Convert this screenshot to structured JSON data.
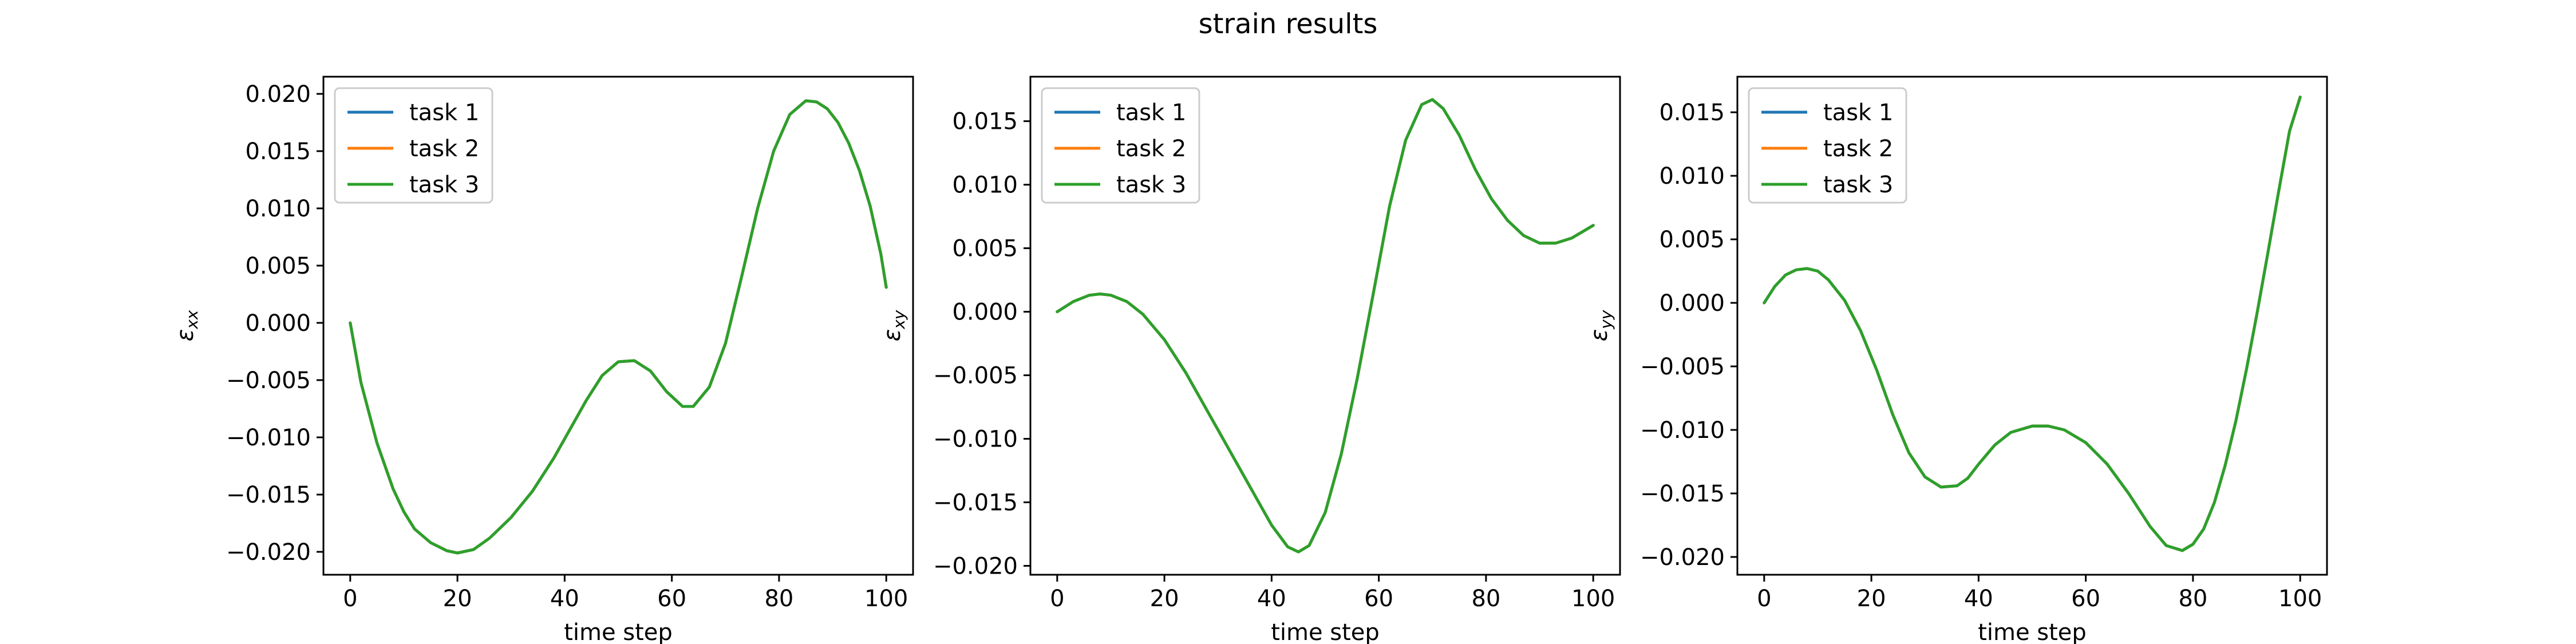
{
  "figure": {
    "title": "strain results"
  },
  "colors": {
    "task_1": "#1f77b4",
    "task_2": "#ff7f0e",
    "task_3": "#2ca02c"
  },
  "chart_data": [
    {
      "type": "line",
      "title": "",
      "xlabel": "time step",
      "ylabel": "εxx",
      "ylabel_symbol": "ε",
      "ylabel_subscript": "xx",
      "xlim": [
        -5,
        105
      ],
      "ylim": [
        -0.022,
        0.0215
      ],
      "xticks": [
        0,
        20,
        40,
        60,
        80,
        100
      ],
      "xtick_labels": [
        "0",
        "20",
        "40",
        "60",
        "80",
        "100"
      ],
      "yticks": [
        -0.02,
        -0.015,
        -0.01,
        -0.005,
        0.0,
        0.005,
        0.01,
        0.015,
        0.02
      ],
      "ytick_labels": [
        "−0.020",
        "−0.015",
        "−0.010",
        "−0.005",
        "0.000",
        "0.005",
        "0.010",
        "0.015",
        "0.020"
      ],
      "grid": false,
      "legend_position": "top-left",
      "x": [
        0,
        2,
        5,
        8,
        10,
        12,
        15,
        18,
        20,
        23,
        26,
        30,
        34,
        38,
        41,
        44,
        47,
        50,
        53,
        56,
        59,
        62,
        64,
        67,
        70,
        73,
        76,
        79,
        82,
        85,
        87,
        89,
        91,
        93,
        95,
        97,
        99,
        100
      ],
      "series": [
        {
          "name": "task 1",
          "color": "#1f77b4",
          "values": [
            0.0,
            -0.0052,
            -0.0105,
            -0.0145,
            -0.0165,
            -0.018,
            -0.0192,
            -0.0199,
            -0.0201,
            -0.0198,
            -0.0188,
            -0.017,
            -0.0147,
            -0.0118,
            -0.0093,
            -0.0068,
            -0.0046,
            -0.0034,
            -0.0033,
            -0.0042,
            -0.006,
            -0.0073,
            -0.0073,
            -0.0056,
            -0.0018,
            0.004,
            0.01,
            0.015,
            0.0182,
            0.0194,
            0.0193,
            0.0187,
            0.0175,
            0.0157,
            0.0133,
            0.0102,
            0.006,
            0.0031
          ]
        },
        {
          "name": "task 2",
          "color": "#ff7f0e",
          "values": [
            0.0,
            -0.0052,
            -0.0105,
            -0.0145,
            -0.0165,
            -0.018,
            -0.0192,
            -0.0199,
            -0.0201,
            -0.0198,
            -0.0188,
            -0.017,
            -0.0147,
            -0.0118,
            -0.0093,
            -0.0068,
            -0.0046,
            -0.0034,
            -0.0033,
            -0.0042,
            -0.006,
            -0.0073,
            -0.0073,
            -0.0056,
            -0.0018,
            0.004,
            0.01,
            0.015,
            0.0182,
            0.0194,
            0.0193,
            0.0187,
            0.0175,
            0.0157,
            0.0133,
            0.0102,
            0.006,
            0.0031
          ]
        },
        {
          "name": "task 3",
          "color": "#2ca02c",
          "values": [
            0.0,
            -0.0052,
            -0.0105,
            -0.0145,
            -0.0165,
            -0.018,
            -0.0192,
            -0.0199,
            -0.0201,
            -0.0198,
            -0.0188,
            -0.017,
            -0.0147,
            -0.0118,
            -0.0093,
            -0.0068,
            -0.0046,
            -0.0034,
            -0.0033,
            -0.0042,
            -0.006,
            -0.0073,
            -0.0073,
            -0.0056,
            -0.0018,
            0.004,
            0.01,
            0.015,
            0.0182,
            0.0194,
            0.0193,
            0.0187,
            0.0175,
            0.0157,
            0.0133,
            0.0102,
            0.006,
            0.0031
          ]
        }
      ]
    },
    {
      "type": "line",
      "title": "",
      "xlabel": "time step",
      "ylabel": "εxy",
      "ylabel_symbol": "ε",
      "ylabel_subscript": "xy",
      "xlim": [
        -5,
        105
      ],
      "ylim": [
        -0.0207,
        0.0185
      ],
      "xticks": [
        0,
        20,
        40,
        60,
        80,
        100
      ],
      "xtick_labels": [
        "0",
        "20",
        "40",
        "60",
        "80",
        "100"
      ],
      "yticks": [
        -0.02,
        -0.015,
        -0.01,
        -0.005,
        0.0,
        0.005,
        0.01,
        0.015
      ],
      "ytick_labels": [
        "−0.020",
        "−0.015",
        "−0.010",
        "−0.005",
        "0.000",
        "0.005",
        "0.010",
        "0.015"
      ],
      "grid": false,
      "legend_position": "top-left",
      "x": [
        0,
        3,
        6,
        8,
        10,
        13,
        16,
        20,
        24,
        28,
        32,
        36,
        40,
        43,
        45,
        47,
        50,
        53,
        56,
        59,
        62,
        65,
        68,
        70,
        72,
        75,
        78,
        81,
        84,
        87,
        90,
        93,
        96,
        98,
        100
      ],
      "series": [
        {
          "name": "task 1",
          "color": "#1f77b4",
          "values": [
            0.0,
            0.0008,
            0.0013,
            0.0014,
            0.0013,
            0.0008,
            -0.0002,
            -0.0022,
            -0.0048,
            -0.0078,
            -0.0108,
            -0.0138,
            -0.0168,
            -0.0185,
            -0.0189,
            -0.0184,
            -0.0158,
            -0.0112,
            -0.0052,
            0.0015,
            0.0083,
            0.0135,
            0.0163,
            0.0167,
            0.016,
            0.0139,
            0.0112,
            0.0089,
            0.0072,
            0.006,
            0.0054,
            0.0054,
            0.0058,
            0.0063,
            0.0068
          ]
        },
        {
          "name": "task 2",
          "color": "#ff7f0e",
          "values": [
            0.0,
            0.0008,
            0.0013,
            0.0014,
            0.0013,
            0.0008,
            -0.0002,
            -0.0022,
            -0.0048,
            -0.0078,
            -0.0108,
            -0.0138,
            -0.0168,
            -0.0185,
            -0.0189,
            -0.0184,
            -0.0158,
            -0.0112,
            -0.0052,
            0.0015,
            0.0083,
            0.0135,
            0.0163,
            0.0167,
            0.016,
            0.0139,
            0.0112,
            0.0089,
            0.0072,
            0.006,
            0.0054,
            0.0054,
            0.0058,
            0.0063,
            0.0068
          ]
        },
        {
          "name": "task 3",
          "color": "#2ca02c",
          "values": [
            0.0,
            0.0008,
            0.0013,
            0.0014,
            0.0013,
            0.0008,
            -0.0002,
            -0.0022,
            -0.0048,
            -0.0078,
            -0.0108,
            -0.0138,
            -0.0168,
            -0.0185,
            -0.0189,
            -0.0184,
            -0.0158,
            -0.0112,
            -0.0052,
            0.0015,
            0.0083,
            0.0135,
            0.0163,
            0.0167,
            0.016,
            0.0139,
            0.0112,
            0.0089,
            0.0072,
            0.006,
            0.0054,
            0.0054,
            0.0058,
            0.0063,
            0.0068
          ]
        }
      ]
    },
    {
      "type": "line",
      "title": "",
      "xlabel": "time step",
      "ylabel": "εyy",
      "ylabel_symbol": "ε",
      "ylabel_subscript": "yy",
      "xlim": [
        -5,
        105
      ],
      "ylim": [
        -0.0214,
        0.0178
      ],
      "xticks": [
        0,
        20,
        40,
        60,
        80,
        100
      ],
      "xtick_labels": [
        "0",
        "20",
        "40",
        "60",
        "80",
        "100"
      ],
      "yticks": [
        -0.02,
        -0.015,
        -0.01,
        -0.005,
        0.0,
        0.005,
        0.01,
        0.015
      ],
      "ytick_labels": [
        "−0.020",
        "−0.015",
        "−0.010",
        "−0.005",
        "0.000",
        "0.005",
        "0.010",
        "0.015"
      ],
      "grid": false,
      "legend_position": "top-left",
      "x": [
        0,
        2,
        4,
        6,
        8,
        10,
        12,
        15,
        18,
        21,
        24,
        27,
        30,
        33,
        36,
        38,
        40,
        43,
        46,
        50,
        53,
        56,
        60,
        64,
        68,
        72,
        75,
        78,
        80,
        82,
        84,
        86,
        88,
        90,
        92,
        94,
        96,
        98,
        100
      ],
      "series": [
        {
          "name": "task 1",
          "color": "#1f77b4",
          "values": [
            0.0,
            0.0013,
            0.0022,
            0.0026,
            0.0027,
            0.0025,
            0.0018,
            0.0002,
            -0.0022,
            -0.0053,
            -0.0088,
            -0.0118,
            -0.0137,
            -0.0145,
            -0.0144,
            -0.0138,
            -0.0127,
            -0.0112,
            -0.0102,
            -0.0097,
            -0.0097,
            -0.01,
            -0.011,
            -0.0127,
            -0.015,
            -0.0176,
            -0.0191,
            -0.0195,
            -0.019,
            -0.0178,
            -0.0157,
            -0.0128,
            -0.0093,
            -0.0052,
            -0.0007,
            0.004,
            0.0088,
            0.0135,
            0.0162
          ]
        },
        {
          "name": "task 2",
          "color": "#ff7f0e",
          "values": [
            0.0,
            0.0013,
            0.0022,
            0.0026,
            0.0027,
            0.0025,
            0.0018,
            0.0002,
            -0.0022,
            -0.0053,
            -0.0088,
            -0.0118,
            -0.0137,
            -0.0145,
            -0.0144,
            -0.0138,
            -0.0127,
            -0.0112,
            -0.0102,
            -0.0097,
            -0.0097,
            -0.01,
            -0.011,
            -0.0127,
            -0.015,
            -0.0176,
            -0.0191,
            -0.0195,
            -0.019,
            -0.0178,
            -0.0157,
            -0.0128,
            -0.0093,
            -0.0052,
            -0.0007,
            0.004,
            0.0088,
            0.0135,
            0.0162
          ]
        },
        {
          "name": "task 3",
          "color": "#2ca02c",
          "values": [
            0.0,
            0.0013,
            0.0022,
            0.0026,
            0.0027,
            0.0025,
            0.0018,
            0.0002,
            -0.0022,
            -0.0053,
            -0.0088,
            -0.0118,
            -0.0137,
            -0.0145,
            -0.0144,
            -0.0138,
            -0.0127,
            -0.0112,
            -0.0102,
            -0.0097,
            -0.0097,
            -0.01,
            -0.011,
            -0.0127,
            -0.015,
            -0.0176,
            -0.0191,
            -0.0195,
            -0.019,
            -0.0178,
            -0.0157,
            -0.0128,
            -0.0093,
            -0.0052,
            -0.0007,
            0.004,
            0.0088,
            0.0135,
            0.0162
          ]
        }
      ]
    }
  ]
}
